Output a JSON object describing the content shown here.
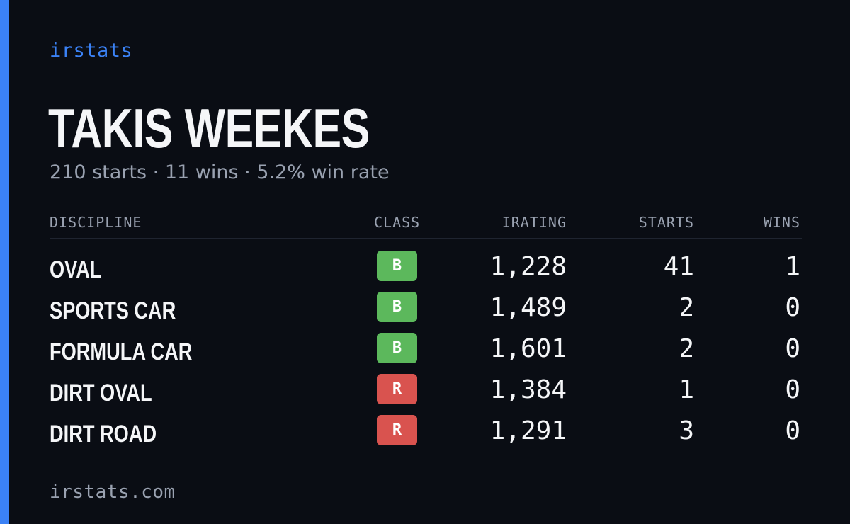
{
  "colors": {
    "accent": "#3b82f6",
    "background": "#0a0d14",
    "class_b": "#5cb85c",
    "class_r": "#d9534f"
  },
  "brand": "irstats",
  "driver": {
    "name": "TAKIS WEEKES",
    "summary": "210 starts · 11 wins · 5.2% win rate"
  },
  "table": {
    "headers": {
      "discipline": "DISCIPLINE",
      "class": "CLASS",
      "irating": "IRATING",
      "starts": "STARTS",
      "wins": "WINS"
    },
    "rows": [
      {
        "discipline": "OVAL",
        "class": "B",
        "irating": "1,228",
        "starts": "41",
        "wins": "1"
      },
      {
        "discipline": "SPORTS CAR",
        "class": "B",
        "irating": "1,489",
        "starts": "2",
        "wins": "0"
      },
      {
        "discipline": "FORMULA CAR",
        "class": "B",
        "irating": "1,601",
        "starts": "2",
        "wins": "0"
      },
      {
        "discipline": "DIRT OVAL",
        "class": "R",
        "irating": "1,384",
        "starts": "1",
        "wins": "0"
      },
      {
        "discipline": "DIRT ROAD",
        "class": "R",
        "irating": "1,291",
        "starts": "3",
        "wins": "0"
      }
    ]
  },
  "footer": "irstats.com"
}
